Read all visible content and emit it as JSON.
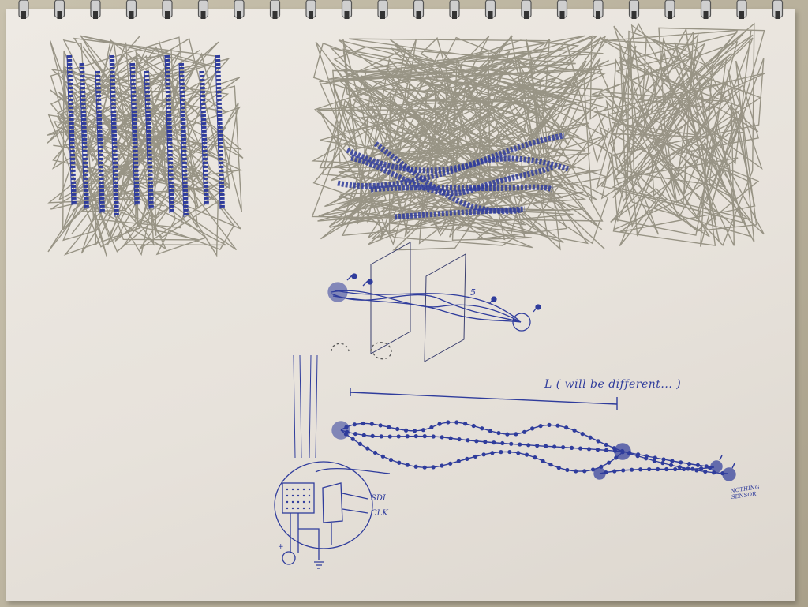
{
  "sketch": {
    "colors": {
      "pencil": "#8a8676",
      "ink": "#2f3c9c",
      "paper": "#ebe7e0",
      "desk": "#bdb6a2"
    },
    "annotations": {
      "length_note": "L ( will be different... )",
      "pin_sdi": "SDI",
      "pin_clk": "CLK",
      "label_five": "5",
      "sensor_note": "NOTHING SENSOR",
      "polarity": "+"
    }
  }
}
